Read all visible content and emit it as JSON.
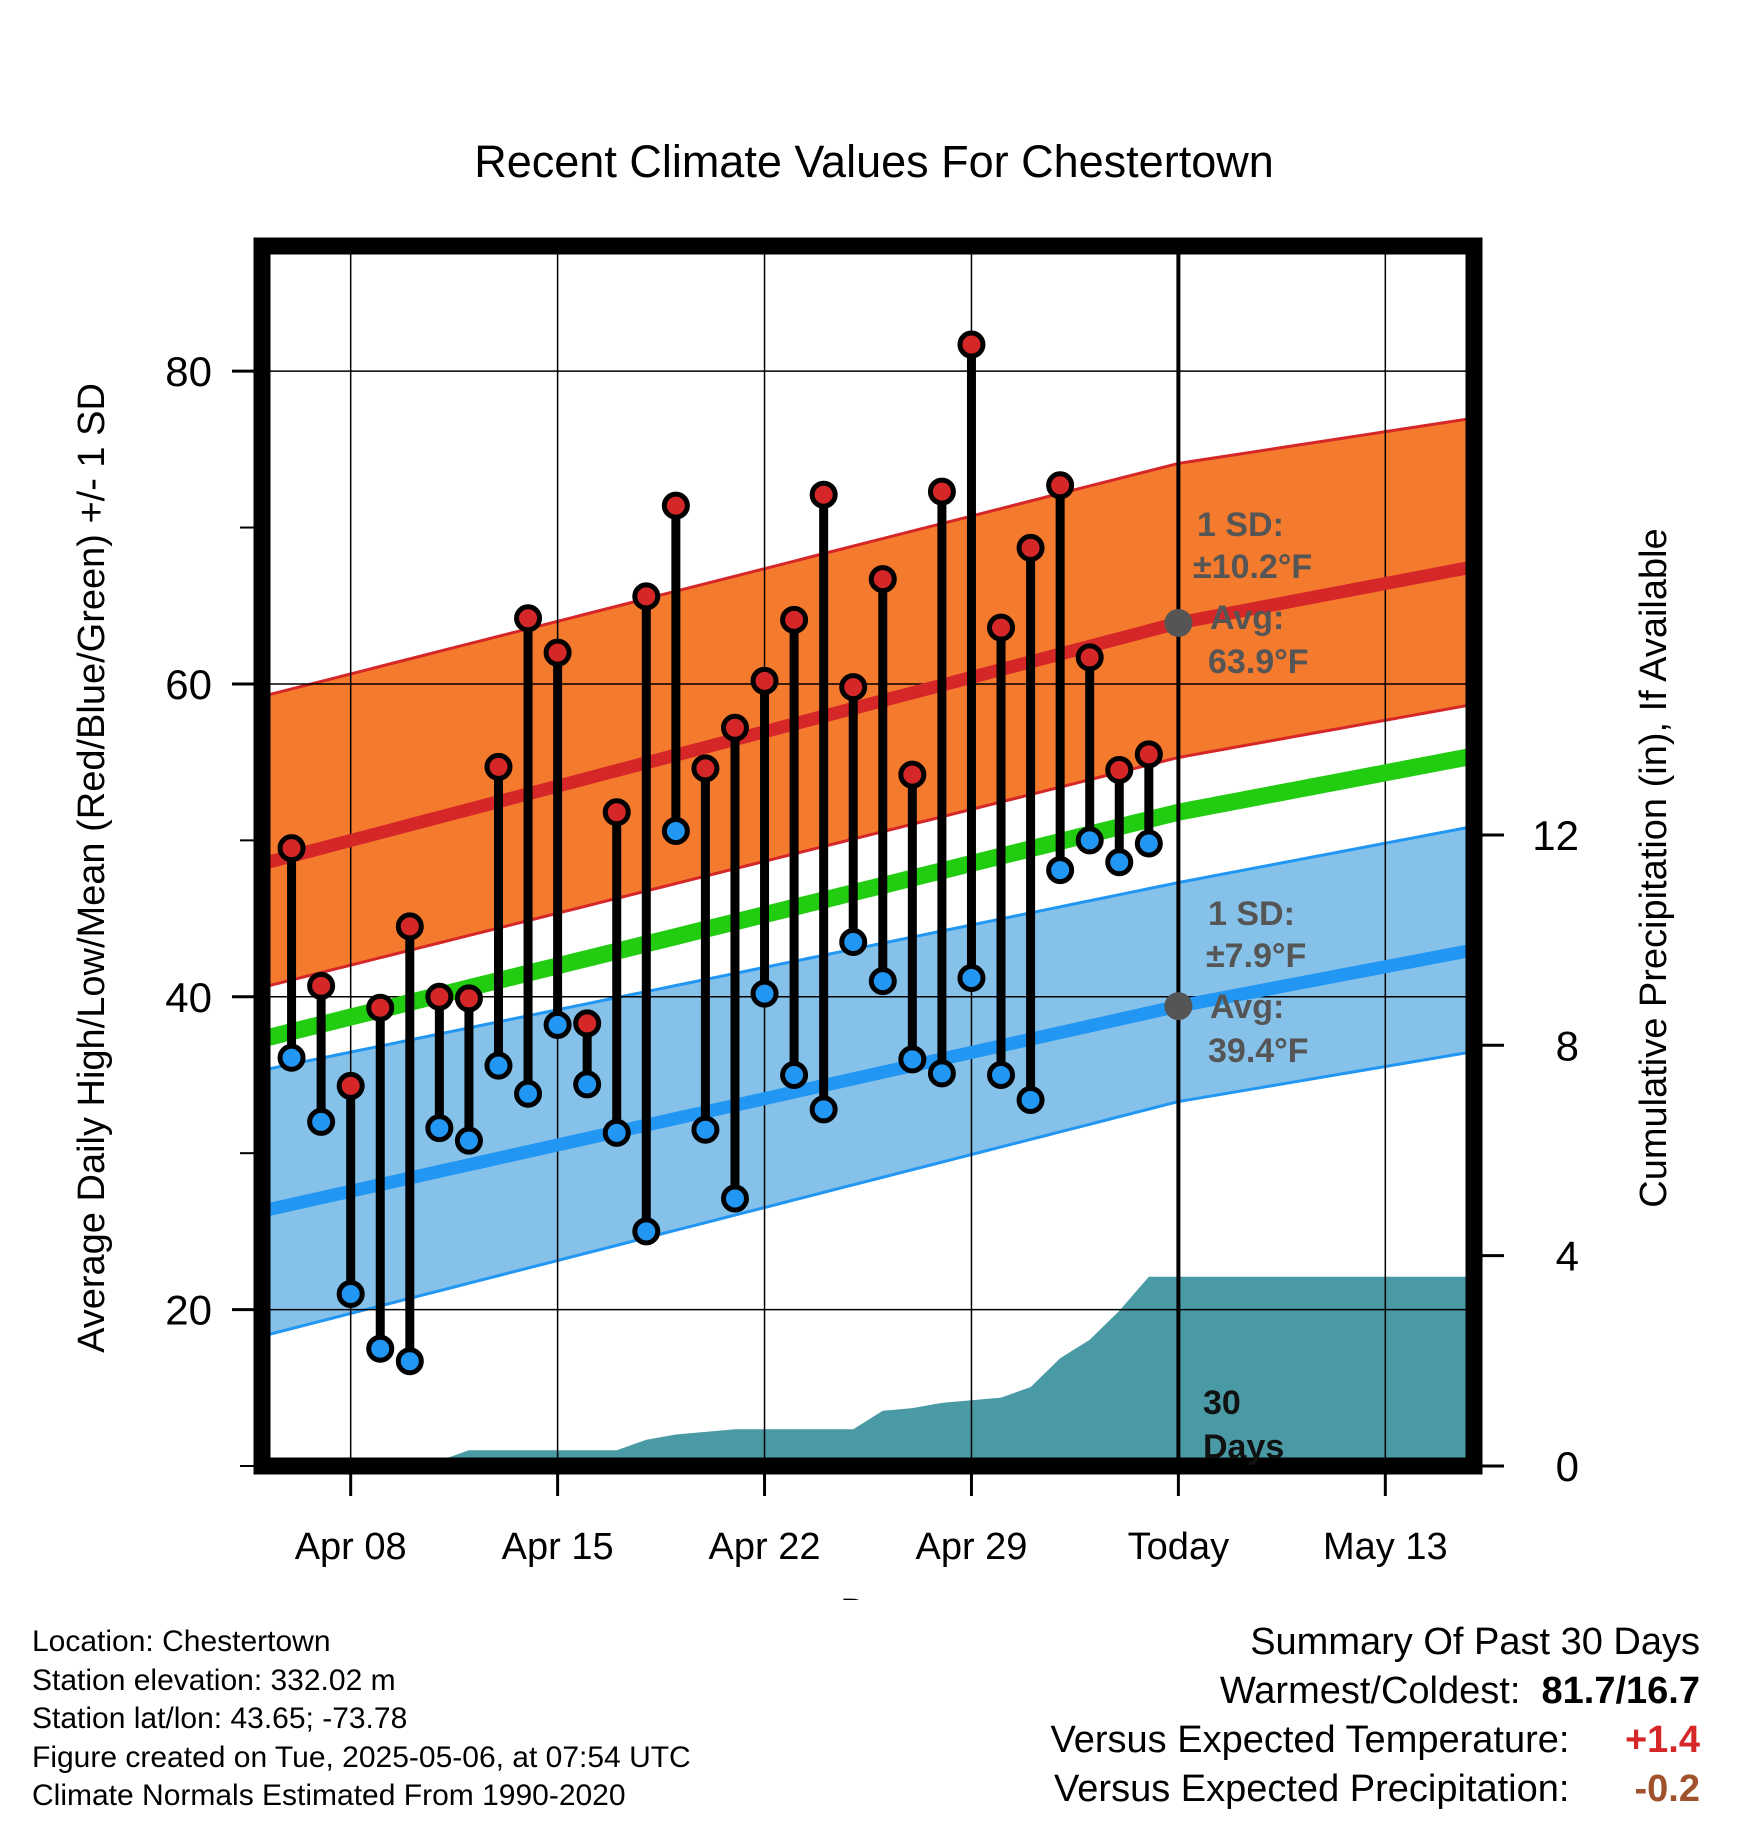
{
  "chart_data": {
    "type": "line",
    "title": "Recent Climate Values For Chestertown",
    "xlabel": "Day",
    "ylabel_left": "Average Daily High/Low/Mean (Red/Blue/Green) +/- 1 SD",
    "ylabel_right": "Cumulative Precipitation (in), If Available",
    "x_tick_labels": [
      "Apr 08",
      "Apr 15",
      "Apr 22",
      "Apr 29",
      "Today",
      "May 13"
    ],
    "x_tick_dates": [
      "2025-04-08",
      "2025-04-15",
      "2025-04-22",
      "2025-04-29",
      "2025-05-06",
      "2025-05-13"
    ],
    "xlim": [
      "2025-04-05",
      "2025-05-16"
    ],
    "today": "2025-05-06",
    "ylim_left": [
      10,
      88
    ],
    "yticks_left": [
      20,
      40,
      60,
      80
    ],
    "yticks_left_minor": [
      10,
      30,
      50,
      70
    ],
    "ylim_right": [
      0,
      23.2
    ],
    "yticks_right": [
      0,
      4,
      8,
      12
    ],
    "grid": true,
    "series": [
      {
        "name": "High",
        "color": "#d62728",
        "dates": [
          "2025-04-06",
          "2025-04-07",
          "2025-04-08",
          "2025-04-09",
          "2025-04-10",
          "2025-04-11",
          "2025-04-12",
          "2025-04-13",
          "2025-04-14",
          "2025-04-15",
          "2025-04-16",
          "2025-04-17",
          "2025-04-18",
          "2025-04-19",
          "2025-04-20",
          "2025-04-21",
          "2025-04-22",
          "2025-04-23",
          "2025-04-24",
          "2025-04-25",
          "2025-04-26",
          "2025-04-27",
          "2025-04-28",
          "2025-04-29",
          "2025-04-30",
          "2025-05-01",
          "2025-05-02",
          "2025-05-03",
          "2025-05-04",
          "2025-05-05"
        ],
        "values": [
          49.5,
          40.7,
          34.3,
          39.3,
          44.5,
          40.0,
          39.9,
          54.7,
          64.2,
          62.0,
          38.3,
          51.8,
          65.6,
          71.4,
          54.6,
          57.2,
          60.2,
          64.1,
          72.1,
          59.8,
          66.7,
          54.2,
          72.3,
          81.7,
          63.6,
          68.7,
          72.7,
          61.7,
          54.5,
          55.5
        ]
      },
      {
        "name": "Low",
        "color": "#2196f3",
        "dates": [
          "2025-04-06",
          "2025-04-07",
          "2025-04-08",
          "2025-04-09",
          "2025-04-10",
          "2025-04-11",
          "2025-04-12",
          "2025-04-13",
          "2025-04-14",
          "2025-04-15",
          "2025-04-16",
          "2025-04-17",
          "2025-04-18",
          "2025-04-19",
          "2025-04-20",
          "2025-04-21",
          "2025-04-22",
          "2025-04-23",
          "2025-04-24",
          "2025-04-25",
          "2025-04-26",
          "2025-04-27",
          "2025-04-28",
          "2025-04-29",
          "2025-04-30",
          "2025-05-01",
          "2025-05-02",
          "2025-05-03",
          "2025-05-04",
          "2025-05-05"
        ],
        "values": [
          36.1,
          32.0,
          21.0,
          17.5,
          16.7,
          31.6,
          30.8,
          35.6,
          33.8,
          38.2,
          34.4,
          31.3,
          25.0,
          50.6,
          31.5,
          27.1,
          40.2,
          35.0,
          32.8,
          43.5,
          41.0,
          36.0,
          35.1,
          41.2,
          35.0,
          33.4,
          48.1,
          50.0,
          48.6,
          49.8
        ]
      }
    ],
    "normals": {
      "dates": [
        "2025-04-05",
        "2025-05-06",
        "2025-05-16"
      ],
      "high_avg": [
        48.5,
        63.9,
        67.5
      ],
      "high_sd_low": [
        40.6,
        55.3,
        58.7
      ],
      "high_sd_high": [
        59.2,
        74.1,
        77.0
      ],
      "mean_avg": [
        37.3,
        51.8,
        55.4
      ],
      "low_avg": [
        26.3,
        39.4,
        43.0
      ],
      "low_sd_low": [
        18.3,
        33.3,
        36.5
      ],
      "low_sd_high": [
        35.3,
        47.3,
        50.9
      ]
    },
    "precipitation": {
      "dates": [
        "2025-04-05",
        "2025-04-10",
        "2025-04-11",
        "2025-04-12",
        "2025-04-17",
        "2025-04-18",
        "2025-04-19",
        "2025-04-20",
        "2025-04-21",
        "2025-04-25",
        "2025-04-26",
        "2025-04-27",
        "2025-04-28",
        "2025-04-29",
        "2025-04-30",
        "2025-05-01",
        "2025-05-02",
        "2025-05-03",
        "2025-05-04",
        "2025-05-05",
        "2025-05-16"
      ],
      "values": [
        0,
        0,
        0.1,
        0.3,
        0.3,
        0.5,
        0.6,
        0.65,
        0.7,
        0.7,
        1.05,
        1.1,
        1.2,
        1.25,
        1.3,
        1.5,
        2.05,
        2.4,
        2.95,
        3.6,
        3.6
      ],
      "color": "#4a9aa5"
    },
    "annotations": {
      "high_sd_label": "1 SD:",
      "high_sd_value": "±10.2°F",
      "high_avg_label": "Avg:",
      "high_avg_value": "63.9°F",
      "low_sd_label": "1 SD:",
      "low_sd_value": "±7.9°F",
      "low_avg_label": "Avg:",
      "low_avg_value": "39.4°F",
      "days_label_1": "30",
      "days_label_2": "Days"
    },
    "colors": {
      "high_band": "#f47a2e",
      "high_line": "#d62728",
      "low_band": "#85c1e9",
      "low_line": "#2196f3",
      "mean_line": "#22cc11",
      "precip": "#4a9aa5",
      "annotation_text": "#555555"
    }
  },
  "footer": {
    "location": "Location: Chestertown",
    "elevation": "Station elevation: 332.02 m",
    "latlon": "Station lat/lon: 43.65; -73.78",
    "created": "Figure created on Tue, 2025-05-06, at 07:54 UTC",
    "normals": "Climate Normals Estimated From 1990-2020"
  },
  "summary": {
    "title": "Summary Of Past 30 Days",
    "warmest_label": "Warmest/Coldest:",
    "warmest_value": "81.7/16.7",
    "temp_label": "Versus Expected Temperature:",
    "temp_value": "+1.4",
    "temp_color": "#d62728",
    "precip_label": "Versus Expected Precipitation:",
    "precip_value": "-0.2",
    "precip_color": "#a0522d"
  }
}
